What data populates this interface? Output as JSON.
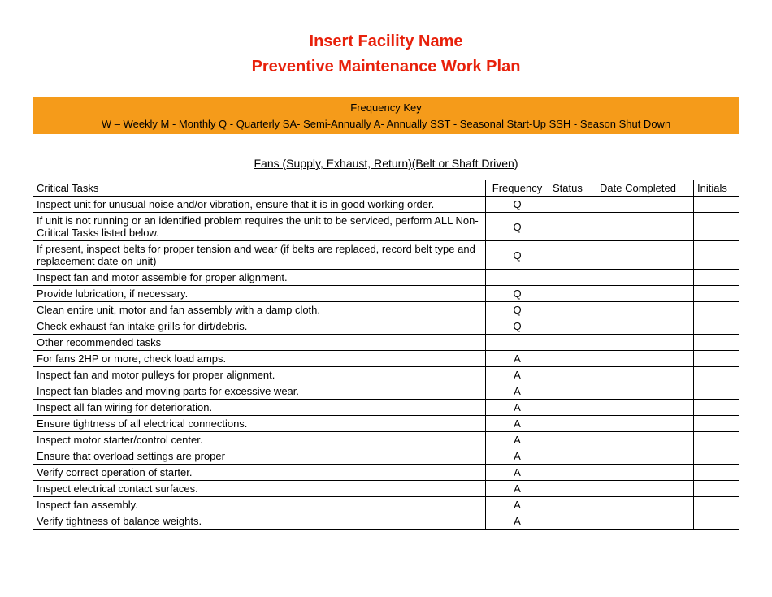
{
  "colors": {
    "title_color": "#e8210b",
    "keybar_bg": "#f59b1a",
    "keybar_text": "#000000",
    "page_bg": "#ffffff",
    "border": "#000000"
  },
  "header": {
    "title": "Insert Facility Name",
    "subtitle": "Preventive Maintenance Work Plan"
  },
  "frequency_key": {
    "title": "Frequency Key",
    "items_line": "W – Weekly    M - Monthly    Q - Quarterly    SA- Semi-Annually   A- Annually   SST - Seasonal Start-Up   SSH - Season Shut Down"
  },
  "section": {
    "heading": "Fans (Supply, Exhaust, Return)(Belt or Shaft Driven)"
  },
  "table": {
    "columns": [
      "Critical Tasks",
      "Frequency",
      "Status",
      "Date Completed",
      "Initials"
    ],
    "rows": [
      {
        "task": "Inspect unit for unusual noise and/or vibration, ensure that it is in good working order.",
        "freq": "Q",
        "status": "",
        "date": "",
        "init": ""
      },
      {
        "task": "If unit is not running or an identified problem requires the unit to be serviced, perform ALL Non-Critical Tasks listed below.",
        "freq": "Q",
        "status": "",
        "date": "",
        "init": ""
      },
      {
        "task": "If present, inspect belts for proper tension and wear (if belts are replaced, record belt type and replacement date on unit)",
        "freq": "Q",
        "status": "",
        "date": "",
        "init": ""
      },
      {
        "task": "Inspect fan and motor assemble for proper alignment.",
        "freq": "",
        "status": "",
        "date": "",
        "init": ""
      },
      {
        "task": "Provide lubrication, if necessary.",
        "freq": "Q",
        "status": "",
        "date": "",
        "init": ""
      },
      {
        "task": "Clean entire unit, motor and fan assembly with a damp cloth.",
        "freq": "Q",
        "status": "",
        "date": "",
        "init": ""
      },
      {
        "task": "Check exhaust fan intake grills for dirt/debris.",
        "freq": "Q",
        "status": "",
        "date": "",
        "init": ""
      },
      {
        "task": "Other recommended tasks",
        "freq": "",
        "status": "",
        "date": "",
        "init": ""
      },
      {
        "task": "For fans 2HP or more, check load amps.",
        "freq": "A",
        "status": "",
        "date": "",
        "init": ""
      },
      {
        "task": "Inspect fan and motor pulleys for proper alignment.",
        "freq": "A",
        "status": "",
        "date": "",
        "init": ""
      },
      {
        "task": "Inspect fan blades and moving parts for excessive wear.",
        "freq": "A",
        "status": "",
        "date": "",
        "init": ""
      },
      {
        "task": "Inspect all fan wiring for deterioration.",
        "freq": "A",
        "status": "",
        "date": "",
        "init": ""
      },
      {
        "task": "Ensure tightness of all electrical connections.",
        "freq": "A",
        "status": "",
        "date": "",
        "init": ""
      },
      {
        "task": "Inspect motor starter/control center.",
        "freq": "A",
        "status": "",
        "date": "",
        "init": ""
      },
      {
        "task": "Ensure that overload settings are proper",
        "freq": "A",
        "status": "",
        "date": "",
        "init": ""
      },
      {
        "task": "Verify correct operation of starter.",
        "freq": "A",
        "status": "",
        "date": "",
        "init": ""
      },
      {
        "task": "Inspect electrical contact surfaces.",
        "freq": "A",
        "status": "",
        "date": "",
        "init": ""
      },
      {
        "task": "Inspect fan assembly.",
        "freq": "A",
        "status": "",
        "date": "",
        "init": ""
      },
      {
        "task": "Verify tightness of balance weights.",
        "freq": "A",
        "status": "",
        "date": "",
        "init": ""
      }
    ]
  }
}
